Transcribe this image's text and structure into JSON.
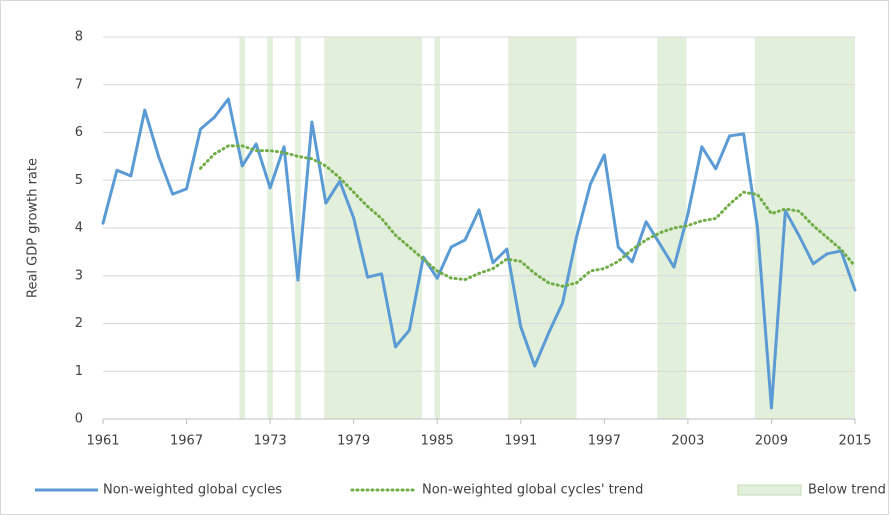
{
  "chart_data": {
    "type": "line",
    "y_label": "Real GDP growth rate",
    "x": [
      1961,
      1962,
      1963,
      1964,
      1965,
      1966,
      1967,
      1968,
      1969,
      1970,
      1971,
      1972,
      1973,
      1974,
      1975,
      1976,
      1977,
      1978,
      1979,
      1980,
      1981,
      1982,
      1983,
      1984,
      1985,
      1986,
      1987,
      1988,
      1989,
      1990,
      1991,
      1992,
      1993,
      1994,
      1995,
      1996,
      1997,
      1998,
      1999,
      2000,
      2001,
      2002,
      2003,
      2004,
      2005,
      2006,
      2007,
      2008,
      2009,
      2010,
      2011,
      2012,
      2013,
      2014,
      2015
    ],
    "series": [
      {
        "name": "Non-weighted global cycles",
        "color": "#5b9bd5",
        "style": "solid",
        "values": [
          4.1,
          5.21,
          5.09,
          6.47,
          5.49,
          4.71,
          4.82,
          6.07,
          6.32,
          6.7,
          5.3,
          5.76,
          4.84,
          5.7,
          2.91,
          6.22,
          4.52,
          4.98,
          4.21,
          2.97,
          3.04,
          1.51,
          1.86,
          3.39,
          2.95,
          3.6,
          3.75,
          4.38,
          3.27,
          3.56,
          1.93,
          1.11,
          1.8,
          2.43,
          3.81,
          4.92,
          5.53,
          3.6,
          3.29,
          4.13,
          3.66,
          3.18,
          4.29,
          5.7,
          5.24,
          5.93,
          5.97,
          4.0,
          0.23,
          4.36,
          3.83,
          3.25,
          3.46,
          3.52,
          2.7
        ]
      },
      {
        "name": "Non-weighted global cycles' trend",
        "color": "#70ad47",
        "style": "dotted",
        "values": [
          null,
          null,
          null,
          null,
          null,
          null,
          null,
          5.25,
          5.55,
          5.72,
          5.72,
          5.62,
          5.62,
          5.58,
          5.5,
          5.45,
          5.3,
          5.05,
          4.75,
          4.45,
          4.2,
          3.85,
          3.6,
          3.35,
          3.1,
          2.95,
          2.92,
          3.05,
          3.15,
          3.35,
          3.3,
          3.05,
          2.85,
          2.78,
          2.85,
          3.1,
          3.15,
          3.3,
          3.55,
          3.75,
          3.9,
          4.0,
          4.05,
          4.15,
          4.2,
          4.5,
          4.75,
          4.7,
          4.3,
          4.4,
          4.35,
          4.05,
          3.8,
          3.55,
          3.2
        ]
      }
    ],
    "below_trend": {
      "name": "Below trend",
      "color": "#e2efda",
      "periods": [
        {
          "start": 1970.8,
          "end": 1971.2
        },
        {
          "start": 1972.8,
          "end": 1973.2
        },
        {
          "start": 1974.8,
          "end": 1975.2
        },
        {
          "start": 1976.9,
          "end": 1983.9
        },
        {
          "start": 1984.8,
          "end": 1985.2
        },
        {
          "start": 1990.1,
          "end": 1995.0
        },
        {
          "start": 2000.8,
          "end": 2002.9
        },
        {
          "start": 2007.8,
          "end": 2015
        }
      ]
    },
    "xlim": [
      1961,
      2015
    ],
    "xticks": [
      1961,
      1967,
      1973,
      1979,
      1985,
      1991,
      1997,
      2003,
      2009,
      2015
    ],
    "ylim": [
      0,
      8
    ],
    "yticks": [
      0,
      1,
      2,
      3,
      4,
      5,
      6,
      7,
      8
    ],
    "grid": true,
    "legend": "bottom"
  }
}
